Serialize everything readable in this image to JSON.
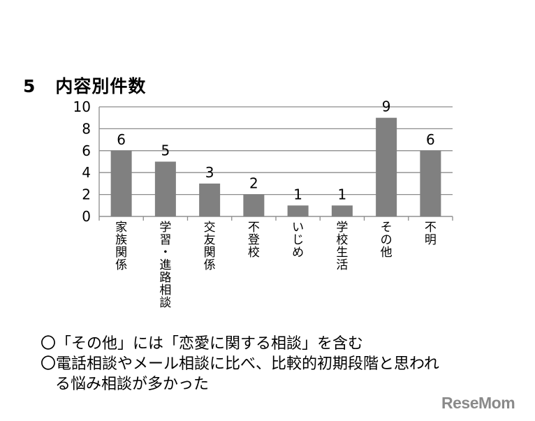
{
  "title": {
    "number": "5",
    "text": "内容別件数"
  },
  "chart_data": {
    "type": "bar",
    "categories": [
      "家族関係",
      "学習・進路相談",
      "交友関係",
      "不登校",
      "いじめ",
      "学校生活",
      "その他",
      "不明"
    ],
    "values": [
      6,
      5,
      3,
      2,
      1,
      1,
      9,
      6
    ],
    "ylim": [
      0,
      10
    ],
    "yticks": [
      0,
      2,
      4,
      6,
      8,
      10
    ],
    "grid": true,
    "legend": "none",
    "bar_color": "#808080",
    "data_labels": true
  },
  "notes": {
    "line1": "〇「その他」には「恋愛に関する相談」を含む",
    "line2": "〇電話相談やメール相談に比べ、比較的初期段階と思われ",
    "line3": "る悩み相談が多かった"
  },
  "watermark": "ReseMom"
}
